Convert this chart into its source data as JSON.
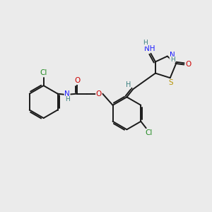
{
  "background_color": "#ebebeb",
  "bond_color": "#1a1a1a",
  "atom_colors": {
    "Cl": "#228B22",
    "O": "#cc0000",
    "N": "#1a1aff",
    "H": "#3a8080",
    "S": "#b8960c",
    "C": "#1a1a1a"
  },
  "figsize": [
    3.0,
    3.0
  ],
  "dpi": 100
}
